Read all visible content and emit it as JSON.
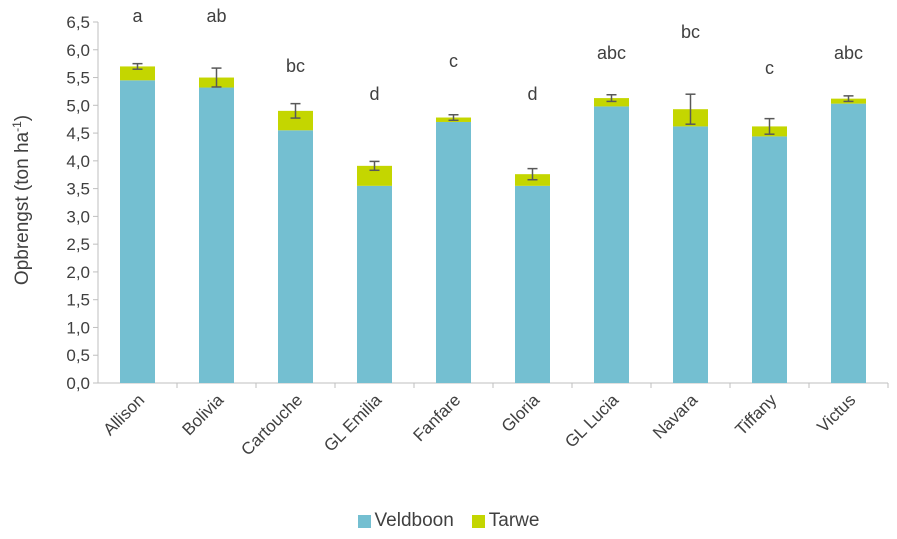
{
  "chart_data": {
    "type": "bar",
    "stacked": true,
    "categories": [
      "Allison",
      "Bolivia",
      "Cartouche",
      "GL Emilia",
      "Fanfare",
      "Gloria",
      "GL Lucia",
      "Navara",
      "Tiffany",
      "Victus"
    ],
    "series": [
      {
        "name": "Veldboon",
        "color": "#74BFD1",
        "values": [
          5.45,
          5.32,
          4.55,
          3.55,
          4.7,
          3.55,
          4.98,
          4.62,
          4.44,
          5.03
        ]
      },
      {
        "name": "Tarwe",
        "color": "#C4D600",
        "values": [
          0.25,
          0.18,
          0.35,
          0.36,
          0.08,
          0.21,
          0.15,
          0.31,
          0.18,
          0.09
        ]
      }
    ],
    "error_bars": [
      0.05,
      0.17,
      0.13,
      0.08,
      0.05,
      0.1,
      0.06,
      0.27,
      0.14,
      0.05
    ],
    "significance_letters": [
      "a",
      "ab",
      "bc",
      "d",
      "c",
      "d",
      "abc",
      "bc",
      "c",
      "abc"
    ],
    "ylabel_main": "Opbrengst (ton ha",
    "ylabel_sup": "-1",
    "ylabel_close": ")",
    "ylim": [
      0,
      6.5
    ],
    "ytick_values": [
      0,
      0.5,
      1,
      1.5,
      2,
      2.5,
      3,
      3.5,
      4,
      4.5,
      5,
      5.5,
      6,
      6.5
    ],
    "ytick_labels": [
      "0,0",
      "0,5",
      "1,0",
      "1,5",
      "2,0",
      "2,5",
      "3,0",
      "3,5",
      "4,0",
      "4,5",
      "5,0",
      "5,5",
      "6,0",
      "6,5"
    ],
    "grid": false,
    "legend_position": "bottom"
  }
}
